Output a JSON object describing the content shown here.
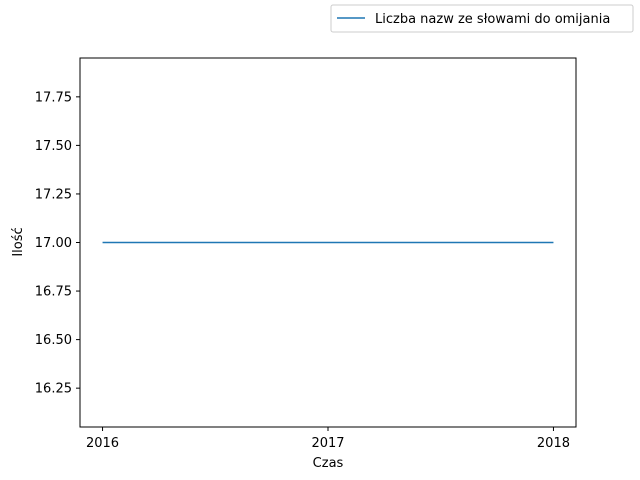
{
  "chart_data": {
    "type": "line",
    "title": "",
    "xlabel": "Czas",
    "ylabel": "Ilość",
    "x": [
      2016,
      2017,
      2018
    ],
    "x_tick_labels": [
      "2016",
      "2017",
      "2018"
    ],
    "xlim": [
      2015.9,
      2018.1
    ],
    "ylim": [
      16.05,
      17.95
    ],
    "y_ticks": [
      16.25,
      16.5,
      16.75,
      17.0,
      17.25,
      17.5,
      17.75
    ],
    "y_tick_labels": [
      "16.25",
      "16.50",
      "16.75",
      "17.00",
      "17.25",
      "17.50",
      "17.75"
    ],
    "series": [
      {
        "name": "Liczba nazw ze słowami do omijania",
        "values": [
          17,
          17,
          17
        ],
        "color": "#1f77b4"
      }
    ],
    "grid": false,
    "legend_placement": "top-right, outside plot area"
  }
}
